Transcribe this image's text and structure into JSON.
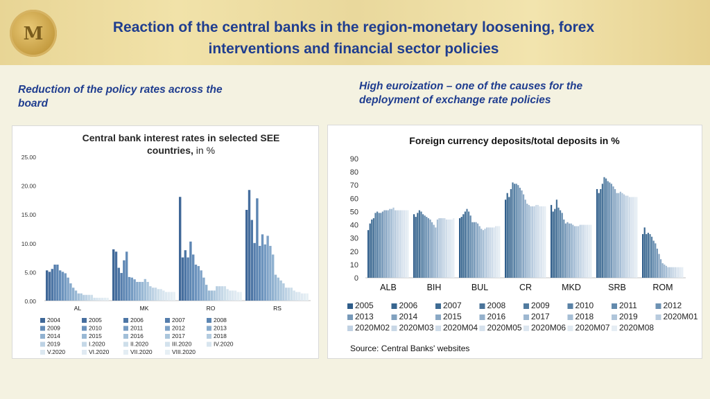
{
  "header": {
    "title_line1": "Reaction of the central banks in the region-monetary loosening, forex",
    "title_line2": "interventions and financial sector policies",
    "logo_text": "M"
  },
  "left_subtitle": {
    "line1": "Reduction of the policy rates across the",
    "line2": "board"
  },
  "right_subtitle": {
    "line1": "High euroization – one of the causes for the",
    "line2": "deployment of exchange rate  policies"
  },
  "chart_data": [
    {
      "type": "bar",
      "title_line1": "Central bank interest rates in selected SEE",
      "title_line2_bold": "countries,",
      "title_line2_rest": " in %",
      "categories": [
        "AL",
        "MK",
        "RO",
        "RS"
      ],
      "ylim": [
        0,
        25
      ],
      "yticks": [
        "0.00",
        "5.00",
        "10.00",
        "15.00",
        "20.00",
        "25.00"
      ],
      "series_names": [
        "2004",
        "2005",
        "2006",
        "2007",
        "2008",
        "2009",
        "2010",
        "2011",
        "2012",
        "2013",
        "2014",
        "2015",
        "2016",
        "2017",
        "2018",
        "2019",
        "I.2020",
        "II.2020",
        "III.2020",
        "IV.2020",
        "V.2020",
        "VI.2020",
        "VII.2020",
        "VIII.2020"
      ],
      "values": [
        [
          5.25,
          5.0,
          5.5,
          6.25,
          6.25,
          5.25,
          5.0,
          4.75,
          4.0,
          3.0,
          2.25,
          1.75,
          1.25,
          1.25,
          1.0,
          1.0,
          1.0,
          1.0,
          0.5,
          0.5,
          0.5,
          0.5,
          0.5,
          0.5
        ],
        [
          8.9,
          8.5,
          5.7,
          4.8,
          7.0,
          8.5,
          4.1,
          4.0,
          3.7,
          3.25,
          3.25,
          3.25,
          3.75,
          3.25,
          2.5,
          2.25,
          2.25,
          2.0,
          2.0,
          1.75,
          1.5,
          1.5,
          1.5,
          1.5
        ],
        [
          18.0,
          7.5,
          8.75,
          7.5,
          10.25,
          8.0,
          6.25,
          6.0,
          5.25,
          4.0,
          2.75,
          1.75,
          1.75,
          1.75,
          2.5,
          2.5,
          2.5,
          2.5,
          2.0,
          1.75,
          1.75,
          1.75,
          1.5,
          1.5
        ],
        [
          15.75,
          19.2,
          14.0,
          10.0,
          17.75,
          9.5,
          11.5,
          9.75,
          11.25,
          9.5,
          8.0,
          4.5,
          4.0,
          3.5,
          3.0,
          2.25,
          2.25,
          2.25,
          1.75,
          1.5,
          1.5,
          1.25,
          1.25,
          1.25
        ]
      ],
      "colors": [
        "#3f6797",
        "#466e9e",
        "#4d76a5",
        "#557dac",
        "#5c85b2",
        "#648cb8",
        "#6c93bd",
        "#759bc2",
        "#7ea2c7",
        "#87aacc",
        "#90b1d0",
        "#99b8d4",
        "#a2bfd8",
        "#abc6dc",
        "#b4cce0",
        "#bdd2e4",
        "#c5d8e7",
        "#cddeea",
        "#d3e2ed",
        "#d8e5ef",
        "#dce8f0",
        "#e0eaf2",
        "#e3edf3",
        "#e6eff4"
      ]
    },
    {
      "type": "bar",
      "title": "Foreign currency deposits/total deposits in %",
      "categories": [
        "ALB",
        "BIH",
        "BUL",
        "CR",
        "MKD",
        "SRB",
        "ROM"
      ],
      "ylim": [
        0,
        90
      ],
      "yticks": [
        "0",
        "10",
        "20",
        "30",
        "40",
        "50",
        "60",
        "70",
        "80",
        "90"
      ],
      "series_names": [
        "2005",
        "2006",
        "2007",
        "2008",
        "2009",
        "2010",
        "2011",
        "2012",
        "2013",
        "2014",
        "2015",
        "2016",
        "2017",
        "2018",
        "2019",
        "2020M01",
        "2020M02",
        "2020M03",
        "2020M04",
        "2020M05",
        "2020M06",
        "2020M07",
        "2020M08"
      ],
      "values": [
        [
          36,
          41,
          44,
          45,
          49,
          50,
          49,
          49,
          50,
          51,
          51,
          51,
          52,
          52,
          53,
          51,
          51,
          51,
          51,
          51,
          51,
          51,
          51
        ],
        [
          48,
          46,
          49,
          51,
          50,
          48,
          47,
          46,
          45,
          44,
          42,
          40,
          38,
          44,
          45,
          45,
          45,
          45,
          44,
          44,
          44,
          44,
          45
        ],
        [
          45,
          46,
          48,
          50,
          52,
          50,
          47,
          42,
          42,
          42,
          41,
          39,
          37,
          36,
          37,
          38,
          38,
          38,
          38,
          38,
          39,
          39,
          39
        ],
        [
          59,
          64,
          61,
          67,
          72,
          71,
          71,
          70,
          68,
          66,
          63,
          59,
          56,
          55,
          54,
          54,
          54,
          55,
          55,
          54,
          54,
          54,
          54
        ],
        [
          55,
          50,
          52,
          59,
          53,
          51,
          49,
          44,
          41,
          42,
          41,
          41,
          40,
          39,
          39,
          39,
          40,
          40,
          40,
          40,
          40,
          40,
          40
        ],
        [
          67,
          64,
          67,
          71,
          76,
          75,
          73,
          72,
          71,
          69,
          67,
          64,
          64,
          65,
          64,
          63,
          62,
          62,
          61,
          61,
          61,
          61,
          61
        ],
        [
          33,
          38,
          33,
          34,
          33,
          31,
          28,
          26,
          22,
          18,
          14,
          11,
          10,
          9,
          8,
          8,
          8,
          8,
          8,
          8,
          8,
          8,
          8
        ]
      ],
      "colors": [
        "#2f5d8a",
        "#37658f",
        "#3e6b93",
        "#4a7399",
        "#517b9f",
        "#5a82a6",
        "#638aad",
        "#6d92b3",
        "#7799b9",
        "#81a1bf",
        "#8aa8c5",
        "#94b0cb",
        "#9db7d0",
        "#a6bed5",
        "#afc5da",
        "#b8cbde",
        "#c0d1e2",
        "#c8d7e6",
        "#cfdce9",
        "#d5e1ec",
        "#dbe5ef",
        "#e0e9f1",
        "#e5edf4"
      ],
      "source": "Source: Central Banks' websites"
    }
  ]
}
